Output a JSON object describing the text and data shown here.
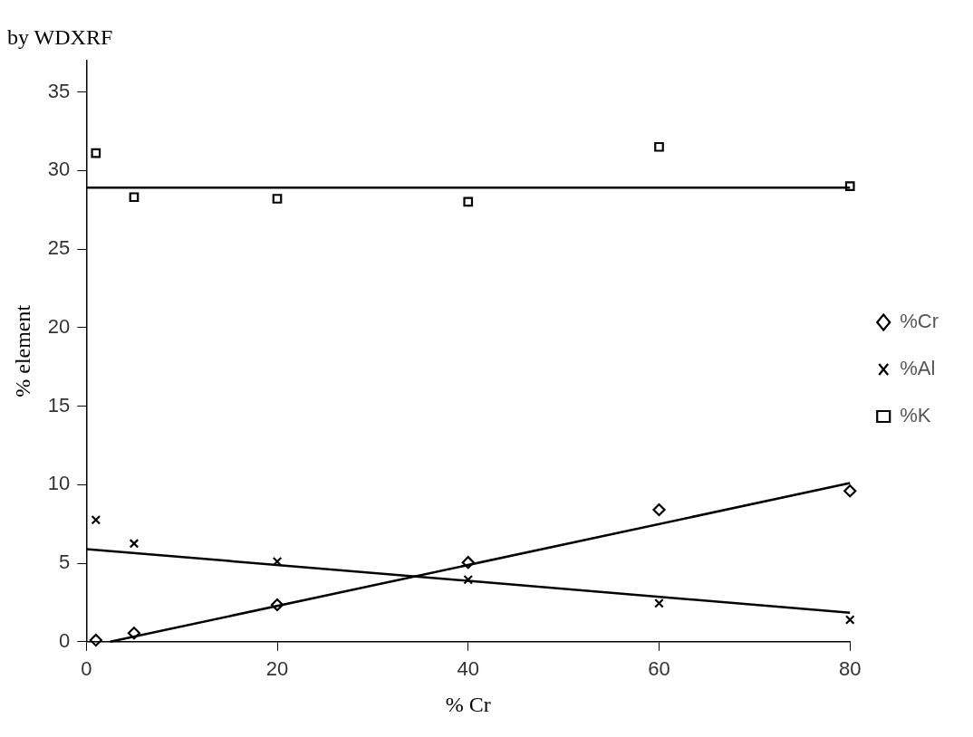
{
  "chart_data": {
    "type": "scatter",
    "title": "by WDXRF",
    "xlabel": "% Cr",
    "ylabel": "% element",
    "xlim": [
      0,
      80
    ],
    "xticks": [
      0,
      20,
      40,
      60,
      80
    ],
    "ylim": [
      0,
      37
    ],
    "yticks": [
      0,
      5,
      10,
      15,
      20,
      25,
      30,
      35
    ],
    "grid": false,
    "legend": "right",
    "series": [
      {
        "name": "%Cr",
        "type": "scatter",
        "marker": "diamond",
        "color": "#000000",
        "x": [
          1,
          5,
          20,
          40,
          60,
          80
        ],
        "values": [
          0.1,
          0.55,
          2.35,
          5.05,
          8.4,
          9.6
        ]
      },
      {
        "name": "%Al",
        "type": "scatter",
        "marker": "cross",
        "color": "#000000",
        "x": [
          1,
          5,
          20,
          40,
          60,
          80
        ],
        "values": [
          7.75,
          6.25,
          5.1,
          3.95,
          2.45,
          1.4
        ]
      },
      {
        "name": "%K",
        "type": "scatter",
        "marker": "square",
        "color": "#000000",
        "x": [
          1,
          5,
          20,
          40,
          60,
          80
        ],
        "values": [
          31.1,
          28.3,
          28.2,
          28.0,
          31.5,
          29.0
        ]
      },
      {
        "type": "line",
        "marker": "none",
        "color": "#000000",
        "x": [
          2.5,
          80
        ],
        "values": [
          0,
          10.1
        ]
      },
      {
        "type": "line",
        "marker": "none",
        "color": "#000000",
        "x": [
          0,
          80
        ],
        "values": [
          5.9,
          1.85
        ]
      },
      {
        "type": "line",
        "marker": "none",
        "color": "#000000",
        "x": [
          0,
          80
        ],
        "values": [
          28.9,
          28.9
        ]
      }
    ]
  }
}
